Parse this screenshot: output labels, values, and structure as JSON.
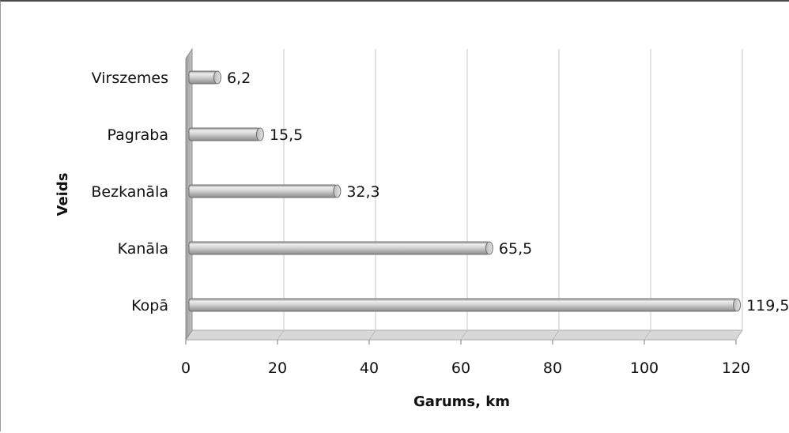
{
  "chart_data": {
    "type": "bar",
    "orientation": "horizontal",
    "categories": [
      "Kopā",
      "Kanāla",
      "Bezkanāla",
      "Pagraba",
      "Virszemes"
    ],
    "values": [
      119.5,
      65.5,
      32.3,
      15.5,
      6.2
    ],
    "data_labels": [
      "119,5",
      "65,5",
      "32,3",
      "15,5",
      "6,2"
    ],
    "xlabel": "Garums, km",
    "ylabel": "Veids",
    "xlim": [
      0,
      120
    ],
    "xticks": [
      0,
      20,
      40,
      60,
      80,
      100,
      120
    ],
    "xtick_labels": [
      "0",
      "20",
      "40",
      "60",
      "80",
      "100",
      "120"
    ],
    "grid": "vertical",
    "legend": "none",
    "style": "3d-cylinder"
  },
  "colors": {
    "bar_fill": "#c6c6c6",
    "bar_highlight": "#f2f2f2",
    "bar_shadow": "#8e8e8e",
    "wall": "#b4b4b4",
    "floor": "#d8d8d8",
    "grid": "#cfcfcf",
    "text": "#111111"
  }
}
